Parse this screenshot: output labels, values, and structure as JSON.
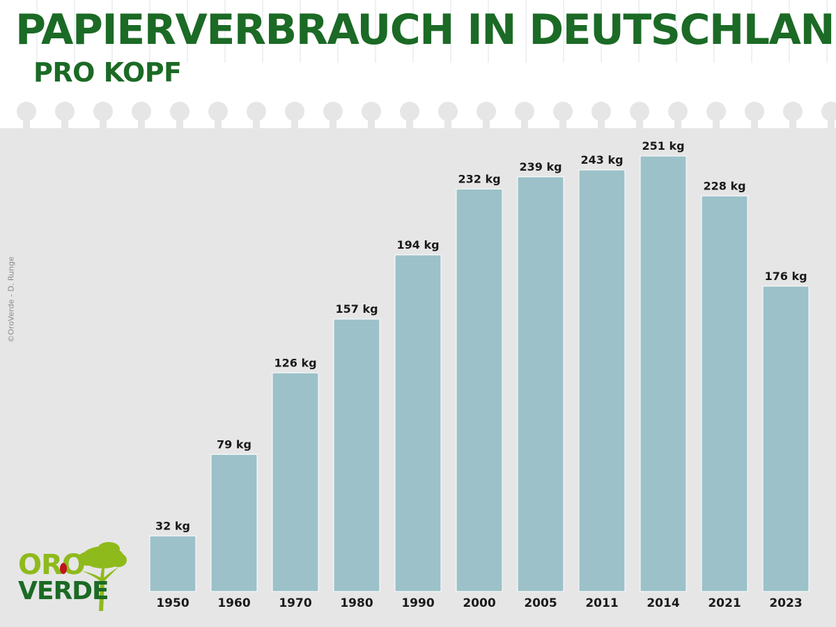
{
  "header": {
    "title": "PAPIERVERBRAUCH IN DEUTSCHLAND",
    "subtitle": "PRO KOPF"
  },
  "credit": "©OroVerde - D. Runge",
  "logo": {
    "line1": "ORO",
    "line2": "VERDE"
  },
  "colors": {
    "title_green": "#1b6a25",
    "bar": "#9cc1c9",
    "bar_edge": "#ffffff",
    "background": "#e6e6e6",
    "logo_light_green": "#8fba1c",
    "logo_dark_green": "#1b6a25",
    "logo_red": "#c0141d"
  },
  "chart_data": {
    "type": "bar",
    "title": "PAPIERVERBRAUCH IN DEUTSCHLAND",
    "subtitle": "PRO KOPF",
    "categories": [
      "1950",
      "1960",
      "1970",
      "1980",
      "1990",
      "2000",
      "2005",
      "2011",
      "2014",
      "2021",
      "2023"
    ],
    "values": [
      32,
      79,
      126,
      157,
      194,
      232,
      239,
      243,
      251,
      228,
      176
    ],
    "labels": [
      "32 kg",
      "79 kg",
      "126 kg",
      "157 kg",
      "194 kg",
      "232 kg",
      "239 kg",
      "243 kg",
      "251 kg",
      "228 kg",
      "176 kg"
    ],
    "unit": "kg",
    "xlabel": "",
    "ylabel": "",
    "ylim": [
      0,
      251
    ],
    "grid": false,
    "legend": "none"
  }
}
